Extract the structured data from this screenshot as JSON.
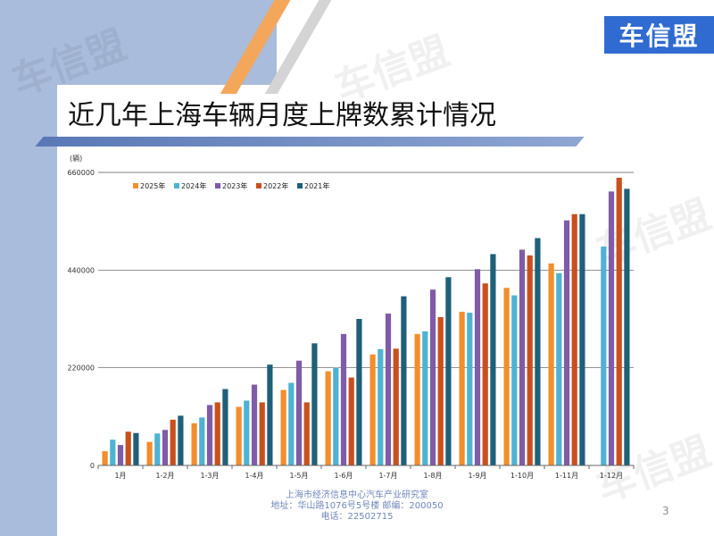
{
  "brand": {
    "logo_text": "车信盟",
    "watermark_text": "车信盟",
    "color": "#2f6bd0"
  },
  "title": "近几年上海车辆月度上牌数累计情况",
  "footer": {
    "line1": "上海市经济信息中心汽车产业研究室",
    "line2": "地址：华山路1076号5号楼    邮编：200050",
    "line3": "电话：22502715"
  },
  "page_number": "3",
  "chart_data": {
    "type": "bar",
    "title": "近几年上海车辆月度上牌数累计情况",
    "unit_label": "(辆)",
    "categories": [
      "1月",
      "1-2月",
      "1-3月",
      "1-4月",
      "1-5月",
      "1-6月",
      "1-7月",
      "1-8月",
      "1-9月",
      "1-10月",
      "1-11月",
      "1-12月"
    ],
    "ylim": [
      0,
      660000
    ],
    "yticks": [
      0,
      220000,
      440000,
      660000
    ],
    "ytick_labels": [
      "0",
      "220000",
      "440000",
      "660000"
    ],
    "legend_position": "top-left",
    "grid": true,
    "series": [
      {
        "name": "2025年",
        "color": "#f28e2b",
        "values": [
          32000,
          53000,
          95000,
          132000,
          170000,
          212000,
          250000,
          296000,
          346000,
          400000,
          455000,
          null
        ]
      },
      {
        "name": "2024年",
        "color": "#4eb3d3",
        "values": [
          58000,
          72000,
          108000,
          146000,
          186000,
          220000,
          262000,
          302000,
          344000,
          383000,
          433000,
          493000
        ]
      },
      {
        "name": "2023年",
        "color": "#7f5ba8",
        "values": [
          46000,
          80000,
          136000,
          182000,
          236000,
          296000,
          342000,
          396000,
          442000,
          486000,
          552000,
          617000
        ]
      },
      {
        "name": "2022年",
        "color": "#c8501c",
        "values": [
          76000,
          103000,
          142000,
          142000,
          142000,
          198000,
          263000,
          334000,
          410000,
          473000,
          566000,
          648000
        ]
      },
      {
        "name": "2021年",
        "color": "#1f5f79",
        "values": [
          73000,
          112000,
          172000,
          227000,
          275000,
          330000,
          381000,
          424000,
          476000,
          512000,
          566000,
          623000
        ]
      }
    ]
  }
}
